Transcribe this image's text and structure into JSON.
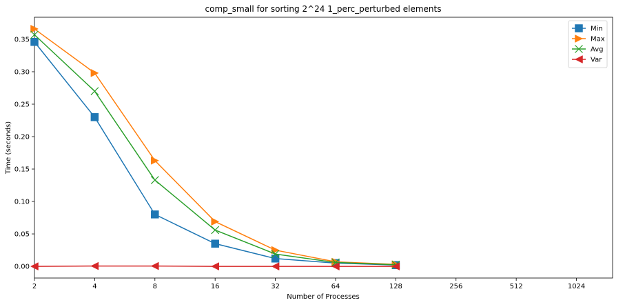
{
  "chart_data": {
    "type": "line",
    "title": "comp_small for sorting 2^24 1_perc_perturbed elements",
    "xlabel": "Number of Processes",
    "ylabel": "Time (seconds)",
    "x_scale": "log2",
    "categories": [
      "2",
      "4",
      "8",
      "16",
      "32",
      "64",
      "128",
      "256",
      "512",
      "1024"
    ],
    "x": [
      2,
      4,
      8,
      16,
      32,
      64,
      128
    ],
    "yticks": [
      "0.00",
      "0.05",
      "0.10",
      "0.15",
      "0.20",
      "0.25",
      "0.30",
      "0.35"
    ],
    "ylim": [
      -0.018,
      0.384
    ],
    "grid": false,
    "legend_position": "top-right",
    "series": [
      {
        "name": "Min",
        "color": "#1f77b4",
        "marker": "square",
        "values": [
          0.346,
          0.23,
          0.08,
          0.035,
          0.012,
          0.005,
          0.002
        ]
      },
      {
        "name": "Max",
        "color": "#ff7f0e",
        "marker": "triangle-right",
        "values": [
          0.366,
          0.298,
          0.163,
          0.069,
          0.025,
          0.007,
          0.003
        ]
      },
      {
        "name": "Avg",
        "color": "#2ca02c",
        "marker": "x",
        "values": [
          0.357,
          0.27,
          0.133,
          0.056,
          0.019,
          0.006,
          0.0025
        ]
      },
      {
        "name": "Var",
        "color": "#d62728",
        "marker": "triangle-left",
        "values": [
          0.0,
          0.0005,
          0.0005,
          0.0,
          0.0,
          0.0,
          0.0
        ]
      }
    ]
  }
}
